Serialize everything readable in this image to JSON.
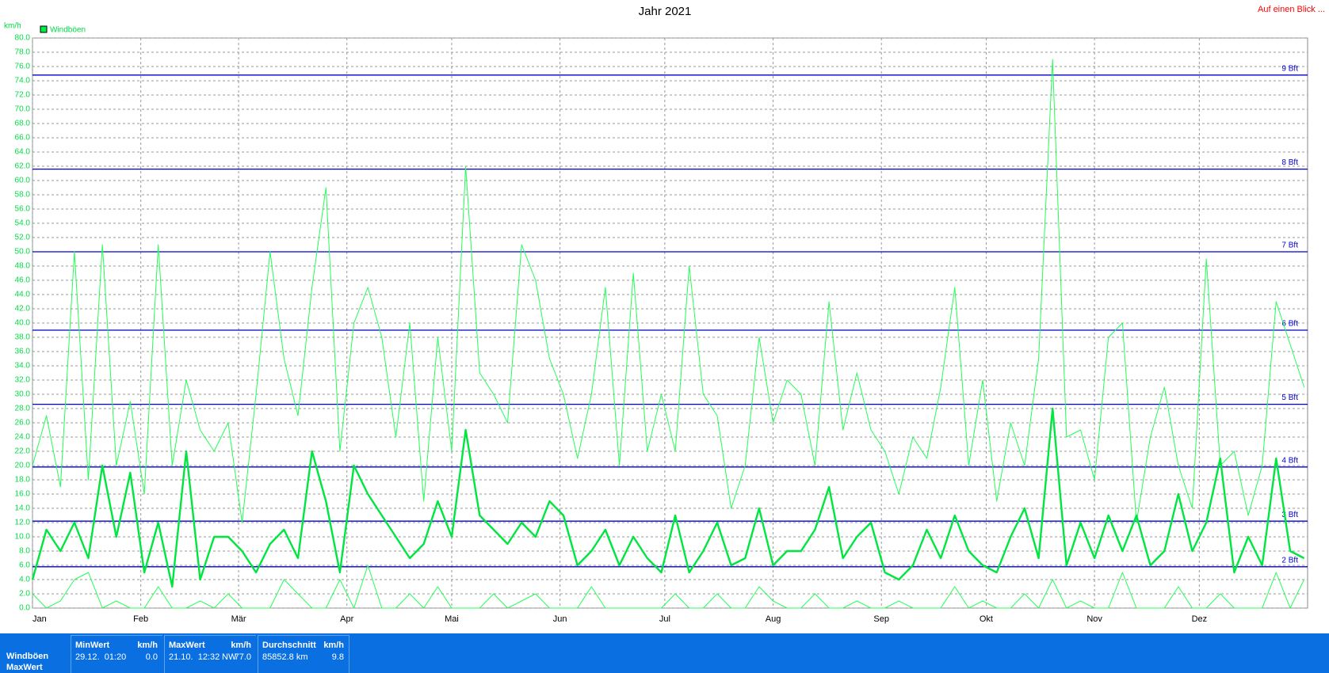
{
  "chart_data": {
    "type": "line",
    "title": "Jahr 2021",
    "corner_link": "Auf einen Blick ...",
    "y_unit": "km/h",
    "grid": true,
    "legend_position": "top-left",
    "xlim": [
      0,
      365
    ],
    "xticks": [
      {
        "value": 0,
        "label": "Jan"
      },
      {
        "value": 31,
        "label": "Feb"
      },
      {
        "value": 59,
        "label": "Mär"
      },
      {
        "value": 90,
        "label": "Apr"
      },
      {
        "value": 120,
        "label": "Mai"
      },
      {
        "value": 151,
        "label": "Jun"
      },
      {
        "value": 181,
        "label": "Jul"
      },
      {
        "value": 212,
        "label": "Aug"
      },
      {
        "value": 243,
        "label": "Sep"
      },
      {
        "value": 273,
        "label": "Okt"
      },
      {
        "value": 304,
        "label": "Nov"
      },
      {
        "value": 334,
        "label": "Dez"
      }
    ],
    "ylim": [
      0,
      80
    ],
    "yticks": [
      {
        "value": 0,
        "label": "0.0"
      },
      {
        "value": 2,
        "label": "2.0"
      },
      {
        "value": 4,
        "label": "4.0"
      },
      {
        "value": 6,
        "label": "6.0"
      },
      {
        "value": 8,
        "label": "8.0"
      },
      {
        "value": 10,
        "label": "10.0"
      },
      {
        "value": 12,
        "label": "12.0"
      },
      {
        "value": 14,
        "label": "14.0"
      },
      {
        "value": 16,
        "label": "16.0"
      },
      {
        "value": 18,
        "label": "18.0"
      },
      {
        "value": 20,
        "label": "20.0"
      },
      {
        "value": 22,
        "label": "22.0"
      },
      {
        "value": 24,
        "label": "24.0"
      },
      {
        "value": 26,
        "label": "26.0"
      },
      {
        "value": 28,
        "label": "28.0"
      },
      {
        "value": 30,
        "label": "30.0"
      },
      {
        "value": 32,
        "label": "32.0"
      },
      {
        "value": 34,
        "label": "34.0"
      },
      {
        "value": 36,
        "label": "36.0"
      },
      {
        "value": 38,
        "label": "38.0"
      },
      {
        "value": 40,
        "label": "40.0"
      },
      {
        "value": 42,
        "label": "42.0"
      },
      {
        "value": 44,
        "label": "44.0"
      },
      {
        "value": 46,
        "label": "46.0"
      },
      {
        "value": 48,
        "label": "48.0"
      },
      {
        "value": 50,
        "label": "50.0"
      },
      {
        "value": 52,
        "label": "52.0"
      },
      {
        "value": 54,
        "label": "54.0"
      },
      {
        "value": 56,
        "label": "56.0"
      },
      {
        "value": 58,
        "label": "58.0"
      },
      {
        "value": 60,
        "label": "60.0"
      },
      {
        "value": 62,
        "label": "62.0"
      },
      {
        "value": 64,
        "label": "64.0"
      },
      {
        "value": 66,
        "label": "66.0"
      },
      {
        "value": 68,
        "label": "68.0"
      },
      {
        "value": 70,
        "label": "70.0"
      },
      {
        "value": 72,
        "label": "72.0"
      },
      {
        "value": 74,
        "label": "74.0"
      },
      {
        "value": 76,
        "label": "76.0"
      },
      {
        "value": 78,
        "label": "78.0"
      },
      {
        "value": 80,
        "label": "80.0"
      }
    ],
    "reference_lines": [
      {
        "value": 5.8,
        "label": "2 Bft"
      },
      {
        "value": 12.2,
        "label": "3 Bft"
      },
      {
        "value": 19.8,
        "label": "4 Bft"
      },
      {
        "value": 28.6,
        "label": "5 Bft"
      },
      {
        "value": 39,
        "label": "6 Bft"
      },
      {
        "value": 50,
        "label": "7 Bft"
      },
      {
        "value": 61.6,
        "label": "8 Bft"
      },
      {
        "value": 74.8,
        "label": "9 Bft"
      }
    ],
    "reference_color": "#0000cc",
    "x": [
      0,
      4,
      8,
      12,
      16,
      20,
      24,
      28,
      32,
      36,
      40,
      44,
      48,
      52,
      56,
      60,
      64,
      68,
      72,
      76,
      80,
      84,
      88,
      92,
      96,
      100,
      104,
      108,
      112,
      116,
      120,
      124,
      128,
      132,
      136,
      140,
      144,
      148,
      152,
      156,
      160,
      164,
      168,
      172,
      176,
      180,
      184,
      188,
      192,
      196,
      200,
      204,
      208,
      212,
      216,
      220,
      224,
      228,
      232,
      236,
      240,
      244,
      248,
      252,
      256,
      260,
      264,
      268,
      272,
      276,
      280,
      284,
      288,
      292,
      296,
      300,
      304,
      308,
      312,
      316,
      320,
      324,
      328,
      332,
      336,
      340,
      344,
      348,
      352,
      356,
      360,
      364
    ],
    "series": [
      {
        "name": "Windböen",
        "color": "#22ff55",
        "width": 1,
        "values": [
          20,
          27,
          17,
          50,
          18,
          51,
          20,
          29,
          16,
          51,
          20,
          32,
          25,
          22,
          26,
          12,
          30,
          50,
          35,
          27,
          45,
          59,
          22,
          40,
          45,
          38,
          24,
          40,
          15,
          38,
          22,
          62,
          33,
          30,
          26,
          51,
          46,
          35,
          30,
          21,
          30,
          45,
          20,
          47,
          22,
          30,
          22,
          48,
          30,
          27,
          14,
          20,
          38,
          26,
          32,
          30,
          20,
          43,
          25,
          33,
          25,
          22,
          16,
          24,
          21,
          31,
          45,
          20,
          32,
          15,
          26,
          20,
          35,
          77,
          24,
          25,
          18,
          38,
          40,
          12,
          24,
          31,
          20,
          14,
          49,
          20,
          22,
          13,
          20,
          43,
          37,
          31
        ]
      },
      {
        "color": "#00e640",
        "width": 2.4,
        "values": [
          4,
          11,
          8,
          12,
          7,
          20,
          10,
          19,
          5,
          12,
          3,
          22,
          4,
          10,
          10,
          8,
          5,
          9,
          11,
          7,
          22,
          15,
          5,
          20,
          16,
          13,
          10,
          7,
          9,
          15,
          10,
          25,
          13,
          11,
          9,
          12,
          10,
          15,
          13,
          6,
          8,
          11,
          6,
          10,
          7,
          5,
          13,
          5,
          8,
          12,
          6,
          7,
          14,
          6,
          8,
          8,
          11,
          17,
          7,
          10,
          12,
          5,
          4,
          6,
          11,
          7,
          13,
          8,
          6,
          5,
          10,
          14,
          7,
          28,
          6,
          12,
          7,
          13,
          8,
          13,
          6,
          8,
          16,
          8,
          12,
          21,
          5,
          10,
          6,
          21,
          8,
          7
        ]
      },
      {
        "color": "#22ff55",
        "width": 1,
        "values": [
          2,
          0,
          1,
          4,
          5,
          0,
          1,
          0,
          0,
          3,
          0,
          0,
          1,
          0,
          2,
          0,
          0,
          0,
          4,
          2,
          0,
          0,
          4,
          0,
          6,
          0,
          0,
          2,
          0,
          3,
          0,
          0,
          0,
          2,
          0,
          1,
          2,
          0,
          0,
          0,
          3,
          0,
          0,
          0,
          0,
          0,
          2,
          0,
          0,
          2,
          0,
          0,
          3,
          1,
          0,
          0,
          2,
          0,
          0,
          1,
          0,
          0,
          1,
          0,
          0,
          0,
          3,
          0,
          1,
          0,
          0,
          2,
          0,
          4,
          0,
          1,
          0,
          0,
          5,
          0,
          0,
          0,
          3,
          0,
          0,
          2,
          0,
          0,
          0,
          5,
          0,
          4
        ]
      }
    ]
  },
  "stats_table": {
    "row_labels": [
      "Windböen",
      "MaxWert"
    ],
    "min": {
      "header": "MinWert",
      "unit": "km/h",
      "time": "29.12.  01:20",
      "value": "0.0"
    },
    "max": {
      "header": "MaxWert",
      "unit": "km/h",
      "time": "21.10.  12:32",
      "direction": "NW",
      "value": "77.0"
    },
    "avg": {
      "header": "Durchschnitt",
      "unit": "km/h",
      "distance": "85852.8 km",
      "value": "9.8"
    }
  }
}
